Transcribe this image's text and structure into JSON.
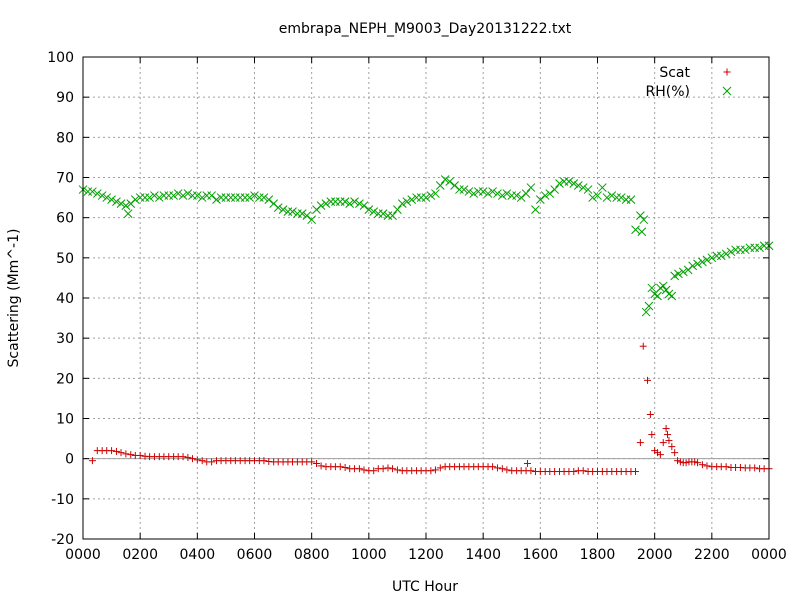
{
  "chart_data": {
    "type": "scatter",
    "title": "embrapa_NEPH_M9003_Day20131222.txt",
    "xlabel": "UTC Hour",
    "ylabel": "Scattering (Mm^-1)",
    "xlim": [
      0,
      24
    ],
    "ylim": [
      -20,
      100
    ],
    "x_ticks": [
      {
        "value": 0,
        "label": "0000"
      },
      {
        "value": 2,
        "label": "0200"
      },
      {
        "value": 4,
        "label": "0400"
      },
      {
        "value": 6,
        "label": "0600"
      },
      {
        "value": 8,
        "label": "0800"
      },
      {
        "value": 10,
        "label": "1000"
      },
      {
        "value": 12,
        "label": "1200"
      },
      {
        "value": 14,
        "label": "1400"
      },
      {
        "value": 16,
        "label": "1600"
      },
      {
        "value": 18,
        "label": "1800"
      },
      {
        "value": 20,
        "label": "2000"
      },
      {
        "value": 22,
        "label": "2200"
      },
      {
        "value": 24,
        "label": "0000"
      }
    ],
    "y_ticks": [
      -20,
      -10,
      0,
      10,
      20,
      30,
      40,
      50,
      60,
      70,
      80,
      90,
      100
    ],
    "grid": true,
    "legend_position": "top-right",
    "zero_line": true,
    "series": [
      {
        "name": "Scat",
        "marker": "plus",
        "color": "#cc0000",
        "points": [
          [
            0.33,
            -0.5
          ],
          [
            0.5,
            2
          ],
          [
            0.67,
            2
          ],
          [
            0.83,
            2
          ],
          [
            1.0,
            2
          ],
          [
            1.17,
            1.8
          ],
          [
            1.33,
            1.5
          ],
          [
            1.5,
            1.2
          ],
          [
            1.67,
            1.0
          ],
          [
            1.83,
            0.8
          ],
          [
            2.0,
            0.8
          ],
          [
            2.17,
            0.6
          ],
          [
            2.33,
            0.5
          ],
          [
            2.5,
            0.5
          ],
          [
            2.67,
            0.5
          ],
          [
            2.83,
            0.5
          ],
          [
            3.0,
            0.5
          ],
          [
            3.17,
            0.5
          ],
          [
            3.33,
            0.5
          ],
          [
            3.5,
            0.5
          ],
          [
            3.67,
            0.3
          ],
          [
            3.83,
            0
          ],
          [
            4.0,
            -0.3
          ],
          [
            4.17,
            -0.5
          ],
          [
            4.33,
            -0.8
          ],
          [
            4.5,
            -0.8
          ],
          [
            4.67,
            -0.5
          ],
          [
            4.83,
            -0.5
          ],
          [
            5.0,
            -0.5
          ],
          [
            5.17,
            -0.5
          ],
          [
            5.33,
            -0.5
          ],
          [
            5.5,
            -0.5
          ],
          [
            5.67,
            -0.5
          ],
          [
            5.83,
            -0.5
          ],
          [
            6.0,
            -0.5
          ],
          [
            6.17,
            -0.5
          ],
          [
            6.33,
            -0.5
          ],
          [
            6.5,
            -0.7
          ],
          [
            6.67,
            -0.8
          ],
          [
            6.83,
            -0.8
          ],
          [
            7.0,
            -0.8
          ],
          [
            7.17,
            -0.8
          ],
          [
            7.33,
            -0.8
          ],
          [
            7.5,
            -0.8
          ],
          [
            7.67,
            -0.8
          ],
          [
            7.83,
            -0.8
          ],
          [
            8.0,
            -0.8
          ],
          [
            8.17,
            -1.2
          ],
          [
            8.33,
            -1.8
          ],
          [
            8.5,
            -2
          ],
          [
            8.67,
            -2
          ],
          [
            8.83,
            -2
          ],
          [
            9.0,
            -2
          ],
          [
            9.17,
            -2.2
          ],
          [
            9.33,
            -2.5
          ],
          [
            9.5,
            -2.5
          ],
          [
            9.67,
            -2.5
          ],
          [
            9.83,
            -2.8
          ],
          [
            10.0,
            -3
          ],
          [
            10.17,
            -3
          ],
          [
            10.33,
            -2.5
          ],
          [
            10.5,
            -2.5
          ],
          [
            10.67,
            -2.3
          ],
          [
            10.83,
            -2.5
          ],
          [
            11.0,
            -2.8
          ],
          [
            11.17,
            -3
          ],
          [
            11.33,
            -3
          ],
          [
            11.5,
            -3
          ],
          [
            11.67,
            -3
          ],
          [
            11.83,
            -3
          ],
          [
            12.0,
            -3
          ],
          [
            12.17,
            -3
          ],
          [
            12.33,
            -2.8
          ],
          [
            12.5,
            -2.3
          ],
          [
            12.67,
            -2
          ],
          [
            12.83,
            -2
          ],
          [
            13.0,
            -2
          ],
          [
            13.17,
            -2
          ],
          [
            13.33,
            -2
          ],
          [
            13.5,
            -2
          ],
          [
            13.67,
            -2
          ],
          [
            13.83,
            -2
          ],
          [
            14.0,
            -2
          ],
          [
            14.17,
            -2
          ],
          [
            14.33,
            -2
          ],
          [
            14.5,
            -2.3
          ],
          [
            14.67,
            -2.5
          ],
          [
            14.83,
            -2.8
          ],
          [
            15.0,
            -3
          ],
          [
            15.17,
            -3
          ],
          [
            15.33,
            -3
          ],
          [
            15.5,
            -3
          ],
          [
            15.55,
            -1.2
          ],
          [
            15.67,
            -3
          ],
          [
            15.83,
            -3.2
          ],
          [
            16.0,
            -3.2
          ],
          [
            16.17,
            -3.2
          ],
          [
            16.33,
            -3.2
          ],
          [
            16.5,
            -3.2
          ],
          [
            16.67,
            -3.2
          ],
          [
            16.83,
            -3.2
          ],
          [
            17.0,
            -3.2
          ],
          [
            17.17,
            -3.2
          ],
          [
            17.33,
            -3
          ],
          [
            17.5,
            -3
          ],
          [
            17.67,
            -3.2
          ],
          [
            17.83,
            -3.2
          ],
          [
            18.0,
            -3.2
          ],
          [
            18.17,
            -3.2
          ],
          [
            18.33,
            -3.2
          ],
          [
            18.5,
            -3.2
          ],
          [
            18.67,
            -3.2
          ],
          [
            18.83,
            -3.2
          ],
          [
            19.0,
            -3.2
          ],
          [
            19.17,
            -3.2
          ],
          [
            19.33,
            -3.2
          ],
          [
            19.5,
            4
          ],
          [
            19.6,
            28
          ],
          [
            19.75,
            19.5
          ],
          [
            19.85,
            11
          ],
          [
            19.9,
            6
          ],
          [
            20.0,
            2
          ],
          [
            20.1,
            1.5
          ],
          [
            20.2,
            1
          ],
          [
            20.3,
            4
          ],
          [
            20.4,
            7.5
          ],
          [
            20.45,
            6
          ],
          [
            20.5,
            4.5
          ],
          [
            20.6,
            3
          ],
          [
            20.7,
            1.5
          ],
          [
            20.8,
            -0.5
          ],
          [
            20.9,
            -0.8
          ],
          [
            21.0,
            -1
          ],
          [
            21.1,
            -1
          ],
          [
            21.2,
            -0.8
          ],
          [
            21.3,
            -0.8
          ],
          [
            21.4,
            -0.8
          ],
          [
            21.5,
            -1
          ],
          [
            21.67,
            -1.5
          ],
          [
            21.83,
            -1.8
          ],
          [
            22.0,
            -2
          ],
          [
            22.17,
            -2
          ],
          [
            22.33,
            -2
          ],
          [
            22.5,
            -2
          ],
          [
            22.67,
            -2.2
          ],
          [
            22.83,
            -2.2
          ],
          [
            23.0,
            -2.2
          ],
          [
            23.17,
            -2.3
          ],
          [
            23.33,
            -2.3
          ],
          [
            23.5,
            -2.3
          ],
          [
            23.67,
            -2.5
          ],
          [
            23.83,
            -2.5
          ],
          [
            24.0,
            -2.5
          ]
        ]
      },
      {
        "name": "RH(%)",
        "marker": "cross",
        "color": "#00a000",
        "points": [
          [
            0.0,
            67
          ],
          [
            0.17,
            66.5
          ],
          [
            0.33,
            66.5
          ],
          [
            0.5,
            66
          ],
          [
            0.67,
            65.5
          ],
          [
            0.83,
            65
          ],
          [
            1.0,
            64.5
          ],
          [
            1.17,
            64
          ],
          [
            1.33,
            63.5
          ],
          [
            1.5,
            63
          ],
          [
            1.58,
            61
          ],
          [
            1.67,
            63.5
          ],
          [
            1.83,
            64.5
          ],
          [
            2.0,
            65
          ],
          [
            2.17,
            65
          ],
          [
            2.33,
            65
          ],
          [
            2.5,
            65.5
          ],
          [
            2.67,
            65
          ],
          [
            2.83,
            65.5
          ],
          [
            3.0,
            65.5
          ],
          [
            3.17,
            65.5
          ],
          [
            3.33,
            66
          ],
          [
            3.5,
            65.5
          ],
          [
            3.67,
            66
          ],
          [
            3.83,
            65.5
          ],
          [
            4.0,
            65.5
          ],
          [
            4.17,
            65
          ],
          [
            4.33,
            65.5
          ],
          [
            4.5,
            65.5
          ],
          [
            4.67,
            64.5
          ],
          [
            4.83,
            65
          ],
          [
            5.0,
            65
          ],
          [
            5.17,
            65
          ],
          [
            5.33,
            65
          ],
          [
            5.5,
            65
          ],
          [
            5.67,
            65
          ],
          [
            5.83,
            65
          ],
          [
            6.0,
            65.5
          ],
          [
            6.17,
            65
          ],
          [
            6.33,
            65
          ],
          [
            6.5,
            64.5
          ],
          [
            6.67,
            63.5
          ],
          [
            6.83,
            62.5
          ],
          [
            7.0,
            62
          ],
          [
            7.17,
            61.5
          ],
          [
            7.33,
            61.5
          ],
          [
            7.5,
            61
          ],
          [
            7.67,
            61
          ],
          [
            7.83,
            60.5
          ],
          [
            8.0,
            59.5
          ],
          [
            8.17,
            62
          ],
          [
            8.33,
            63
          ],
          [
            8.5,
            63.5
          ],
          [
            8.67,
            64
          ],
          [
            8.83,
            64
          ],
          [
            9.0,
            64
          ],
          [
            9.17,
            64
          ],
          [
            9.33,
            63.5
          ],
          [
            9.5,
            64
          ],
          [
            9.67,
            63.5
          ],
          [
            9.83,
            63
          ],
          [
            10.0,
            62
          ],
          [
            10.17,
            61.5
          ],
          [
            10.33,
            61
          ],
          [
            10.5,
            61
          ],
          [
            10.67,
            60.5
          ],
          [
            10.83,
            60.5
          ],
          [
            11.0,
            62
          ],
          [
            11.17,
            63.5
          ],
          [
            11.33,
            64
          ],
          [
            11.5,
            64.5
          ],
          [
            11.67,
            65
          ],
          [
            11.83,
            65
          ],
          [
            12.0,
            65
          ],
          [
            12.17,
            65.5
          ],
          [
            12.33,
            66
          ],
          [
            12.5,
            68
          ],
          [
            12.67,
            69.5
          ],
          [
            12.83,
            69
          ],
          [
            13.0,
            68
          ],
          [
            13.17,
            67
          ],
          [
            13.33,
            67
          ],
          [
            13.5,
            66.5
          ],
          [
            13.67,
            66
          ],
          [
            13.83,
            66.5
          ],
          [
            14.0,
            66.5
          ],
          [
            14.17,
            66
          ],
          [
            14.33,
            66.5
          ],
          [
            14.5,
            66
          ],
          [
            14.67,
            65.5
          ],
          [
            14.83,
            66
          ],
          [
            15.0,
            65.5
          ],
          [
            15.17,
            65.5
          ],
          [
            15.33,
            65
          ],
          [
            15.5,
            66
          ],
          [
            15.67,
            67.5
          ],
          [
            15.83,
            62
          ],
          [
            16.0,
            64.5
          ],
          [
            16.17,
            65.5
          ],
          [
            16.33,
            66
          ],
          [
            16.5,
            67
          ],
          [
            16.67,
            68.5
          ],
          [
            16.83,
            69
          ],
          [
            17.0,
            69
          ],
          [
            17.17,
            68.5
          ],
          [
            17.33,
            68
          ],
          [
            17.5,
            67.5
          ],
          [
            17.67,
            67
          ],
          [
            17.83,
            65
          ],
          [
            18.0,
            65.5
          ],
          [
            18.17,
            67.5
          ],
          [
            18.33,
            65
          ],
          [
            18.5,
            65.5
          ],
          [
            18.67,
            65
          ],
          [
            18.83,
            65
          ],
          [
            19.0,
            64.5
          ],
          [
            19.17,
            64.5
          ],
          [
            19.33,
            57
          ],
          [
            19.5,
            60.5
          ],
          [
            19.55,
            56.5
          ],
          [
            19.62,
            59.5
          ],
          [
            19.7,
            36.5
          ],
          [
            19.8,
            38
          ],
          [
            19.9,
            42.5
          ],
          [
            20.0,
            41
          ],
          [
            20.1,
            40.5
          ],
          [
            20.2,
            42.5
          ],
          [
            20.3,
            43
          ],
          [
            20.4,
            42
          ],
          [
            20.5,
            41
          ],
          [
            20.6,
            40.5
          ],
          [
            20.7,
            45.5
          ],
          [
            20.83,
            46
          ],
          [
            21.0,
            46.5
          ],
          [
            21.17,
            47
          ],
          [
            21.33,
            48
          ],
          [
            21.5,
            48.5
          ],
          [
            21.67,
            49
          ],
          [
            21.83,
            49.5
          ],
          [
            22.0,
            50
          ],
          [
            22.17,
            50.5
          ],
          [
            22.33,
            50.5
          ],
          [
            22.5,
            51
          ],
          [
            22.67,
            51.5
          ],
          [
            22.83,
            52
          ],
          [
            23.0,
            52
          ],
          [
            23.17,
            52
          ],
          [
            23.33,
            52.5
          ],
          [
            23.5,
            52.5
          ],
          [
            23.67,
            52.5
          ],
          [
            23.83,
            53
          ],
          [
            24.0,
            53
          ]
        ]
      }
    ]
  }
}
